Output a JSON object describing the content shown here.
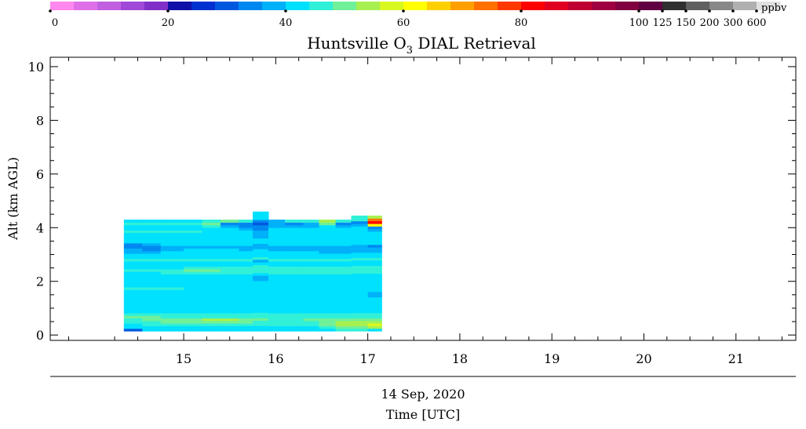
{
  "chart_data": {
    "type": "heatmap",
    "title": "Huntsville O",
    "title_sub": "3",
    "title_rest": " DIAL Retrieval",
    "ylabel": "Alt (km AGL)",
    "xlabel_date": "14 Sep, 2020",
    "xlabel": "Time [UTC]",
    "x_unit": "UTC hour",
    "xlim": [
      13.55,
      21.65
    ],
    "ylim": [
      -0.2,
      10.35
    ],
    "x_ticks": [
      15,
      16,
      17,
      18,
      19,
      20,
      21
    ],
    "y_ticks": [
      0,
      2,
      4,
      6,
      8,
      10
    ],
    "grid": false,
    "colorbar": {
      "unit": "ppbv",
      "colors": [
        "#ff88ee",
        "#e070e8",
        "#c060e0",
        "#a048d8",
        "#8030c8",
        "#1010a8",
        "#0030d0",
        "#0058e0",
        "#0088f0",
        "#00b0f8",
        "#00e0ff",
        "#30f0d8",
        "#70f098",
        "#a8f050",
        "#d8f820",
        "#ffff00",
        "#ffd000",
        "#ffa000",
        "#ff7000",
        "#ff3800",
        "#ff0000",
        "#e00020",
        "#c00030",
        "#a00040",
        "#800040",
        "#600040",
        "#303030",
        "#606060",
        "#888888",
        "#b0b0b0",
        "#e0e0e0"
      ],
      "tick_labels": [
        "0",
        "20",
        "40",
        "60",
        "80",
        "100",
        "125",
        "150",
        "200",
        "300",
        "600"
      ],
      "tick_bins": [
        0,
        5,
        10,
        15,
        20,
        25,
        26,
        27,
        28,
        29,
        30
      ]
    },
    "data_color_scale": [
      {
        "ppbv": 24,
        "color": "#0058e0"
      },
      {
        "ppbv": 32,
        "color": "#0088f0"
      },
      {
        "ppbv": 38,
        "color": "#00b0f8"
      },
      {
        "ppbv": 42,
        "color": "#00e0ff"
      },
      {
        "ppbv": 46,
        "color": "#30f0d8"
      },
      {
        "ppbv": 50,
        "color": "#70f098"
      },
      {
        "ppbv": 54,
        "color": "#a8f050"
      },
      {
        "ppbv": 58,
        "color": "#d8f820"
      },
      {
        "ppbv": 62,
        "color": "#ffff00"
      },
      {
        "ppbv": 75,
        "color": "#ff7000"
      },
      {
        "ppbv": 85,
        "color": "#ff0000"
      }
    ],
    "profiles": [
      {
        "t0": 14.35,
        "t1": 14.55,
        "top": 4.3,
        "values": [
          24,
          44,
          44,
          46,
          46,
          50,
          46,
          44,
          44,
          44,
          44,
          42,
          42,
          42,
          44,
          44,
          46,
          44,
          42,
          42,
          42,
          42,
          44,
          46,
          42,
          42,
          42,
          46,
          44,
          42,
          38,
          38,
          32,
          32,
          42,
          44,
          44,
          44,
          46,
          44,
          44,
          46,
          44
        ]
      },
      {
        "t0": 14.55,
        "t1": 14.75,
        "top": 4.3,
        "values": [
          42,
          44,
          46,
          46,
          50,
          50,
          46,
          44,
          44,
          44,
          44,
          42,
          42,
          42,
          44,
          44,
          46,
          44,
          42,
          42,
          42,
          44,
          44,
          46,
          42,
          42,
          42,
          46,
          44,
          42,
          38,
          32,
          32,
          38,
          42,
          44,
          44,
          44,
          46,
          44,
          44,
          46,
          44
        ]
      },
      {
        "t0": 14.75,
        "t1": 15.0,
        "top": 4.3,
        "values": [
          44,
          44,
          46,
          50,
          50,
          46,
          46,
          44,
          44,
          44,
          42,
          42,
          42,
          42,
          44,
          44,
          46,
          44,
          44,
          42,
          42,
          44,
          46,
          46,
          42,
          42,
          42,
          46,
          44,
          42,
          42,
          38,
          38,
          42,
          42,
          44,
          44,
          44,
          46,
          44,
          44,
          46,
          44
        ]
      },
      {
        "t0": 15.0,
        "t1": 15.2,
        "top": 4.3,
        "values": [
          44,
          44,
          46,
          50,
          50,
          46,
          46,
          44,
          44,
          44,
          42,
          42,
          42,
          42,
          44,
          44,
          44,
          44,
          44,
          42,
          42,
          44,
          46,
          50,
          46,
          42,
          42,
          46,
          44,
          42,
          42,
          42,
          38,
          42,
          42,
          44,
          44,
          44,
          46,
          44,
          44,
          46,
          44
        ]
      },
      {
        "t0": 15.2,
        "t1": 15.4,
        "top": 4.3,
        "values": [
          44,
          44,
          46,
          50,
          54,
          46,
          46,
          44,
          44,
          44,
          42,
          42,
          42,
          42,
          44,
          44,
          44,
          44,
          44,
          42,
          42,
          44,
          46,
          50,
          46,
          42,
          42,
          46,
          44,
          42,
          42,
          42,
          38,
          42,
          42,
          44,
          44,
          44,
          44,
          44,
          46,
          50,
          46
        ]
      },
      {
        "t0": 15.4,
        "t1": 15.6,
        "top": 4.3,
        "values": [
          44,
          44,
          46,
          50,
          54,
          46,
          46,
          44,
          44,
          42,
          42,
          42,
          42,
          42,
          44,
          44,
          44,
          44,
          44,
          42,
          42,
          44,
          46,
          46,
          46,
          42,
          42,
          46,
          44,
          42,
          42,
          42,
          38,
          42,
          42,
          42,
          44,
          44,
          44,
          44,
          38,
          32,
          50
        ]
      },
      {
        "t0": 15.6,
        "t1": 15.75,
        "top": 4.3,
        "values": [
          44,
          44,
          46,
          50,
          50,
          46,
          46,
          44,
          44,
          42,
          42,
          42,
          42,
          42,
          44,
          44,
          44,
          44,
          44,
          42,
          42,
          44,
          46,
          46,
          46,
          42,
          42,
          46,
          44,
          42,
          42,
          38,
          38,
          42,
          42,
          42,
          44,
          44,
          44,
          38,
          32,
          32,
          46
        ]
      },
      {
        "t0": 15.75,
        "t1": 15.92,
        "top": 4.6,
        "values": [
          44,
          44,
          46,
          46,
          50,
          46,
          46,
          44,
          44,
          42,
          42,
          42,
          42,
          42,
          44,
          44,
          44,
          44,
          44,
          38,
          38,
          44,
          46,
          46,
          46,
          42,
          38,
          46,
          44,
          42,
          42,
          38,
          38,
          42,
          42,
          38,
          38,
          38,
          32,
          32,
          24,
          32,
          42,
          42,
          42
        ]
      },
      {
        "t0": 15.92,
        "t1": 16.1,
        "top": 4.3,
        "values": [
          44,
          44,
          46,
          46,
          46,
          46,
          46,
          44,
          44,
          42,
          42,
          42,
          42,
          42,
          44,
          44,
          44,
          44,
          44,
          42,
          42,
          44,
          46,
          46,
          46,
          42,
          42,
          46,
          44,
          42,
          42,
          38,
          38,
          42,
          42,
          42,
          44,
          44,
          44,
          44,
          38,
          38,
          38
        ]
      },
      {
        "t0": 16.1,
        "t1": 16.3,
        "top": 4.3,
        "values": [
          44,
          44,
          46,
          46,
          46,
          46,
          46,
          44,
          44,
          42,
          42,
          42,
          42,
          42,
          44,
          44,
          44,
          44,
          44,
          42,
          42,
          44,
          46,
          46,
          46,
          42,
          42,
          46,
          44,
          42,
          42,
          38,
          38,
          42,
          42,
          42,
          44,
          44,
          44,
          44,
          38,
          32,
          46
        ]
      },
      {
        "t0": 16.3,
        "t1": 16.47,
        "top": 4.3,
        "values": [
          44,
          44,
          46,
          46,
          50,
          46,
          46,
          44,
          44,
          42,
          42,
          42,
          42,
          42,
          44,
          44,
          44,
          44,
          44,
          42,
          42,
          44,
          46,
          46,
          46,
          42,
          42,
          46,
          44,
          42,
          42,
          38,
          38,
          42,
          42,
          42,
          44,
          44,
          44,
          44,
          38,
          38,
          46
        ]
      },
      {
        "t0": 16.47,
        "t1": 16.65,
        "top": 4.3,
        "values": [
          44,
          46,
          50,
          50,
          50,
          46,
          46,
          44,
          44,
          42,
          42,
          42,
          42,
          42,
          42,
          44,
          44,
          44,
          44,
          42,
          42,
          44,
          46,
          46,
          46,
          42,
          42,
          46,
          44,
          42,
          38,
          38,
          38,
          42,
          42,
          42,
          44,
          44,
          44,
          44,
          42,
          50,
          54
        ]
      },
      {
        "t0": 16.65,
        "t1": 16.82,
        "top": 4.3,
        "values": [
          46,
          50,
          54,
          54,
          50,
          46,
          46,
          44,
          44,
          42,
          42,
          42,
          42,
          42,
          42,
          44,
          44,
          44,
          44,
          42,
          42,
          44,
          46,
          46,
          46,
          42,
          42,
          46,
          44,
          42,
          38,
          38,
          38,
          42,
          42,
          42,
          44,
          44,
          44,
          44,
          38,
          32,
          46
        ]
      },
      {
        "t0": 16.82,
        "t1": 17.0,
        "top": 4.45,
        "values": [
          46,
          50,
          54,
          54,
          50,
          46,
          46,
          44,
          44,
          42,
          42,
          42,
          42,
          42,
          42,
          44,
          44,
          44,
          44,
          42,
          42,
          44,
          46,
          46,
          46,
          42,
          42,
          46,
          44,
          42,
          38,
          38,
          38,
          42,
          42,
          42,
          44,
          44,
          44,
          44,
          38,
          32,
          46,
          46
        ]
      },
      {
        "t0": 17.0,
        "t1": 17.15,
        "top": 4.45,
        "values": [
          44,
          54,
          58,
          54,
          50,
          46,
          46,
          44,
          44,
          42,
          42,
          42,
          42,
          38,
          38,
          44,
          44,
          44,
          44,
          42,
          42,
          44,
          46,
          46,
          46,
          42,
          42,
          46,
          44,
          42,
          38,
          38,
          32,
          42,
          42,
          42,
          44,
          44,
          38,
          32,
          62,
          85,
          75,
          54
        ]
      }
    ]
  }
}
